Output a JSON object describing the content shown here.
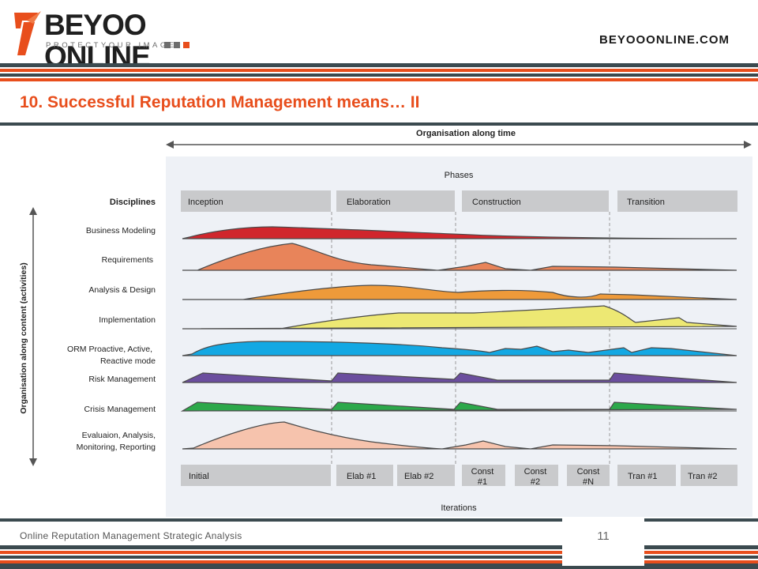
{
  "brand": {
    "name": "BEYOO ONLINE",
    "tagline": "PROTECTYOUR IMAGE",
    "url": "BEYOOONLINE.COM",
    "colors": {
      "orange": "#e84e1c",
      "dark": "#3b4a4f",
      "gray": "#6d6d6d"
    }
  },
  "slide": {
    "title": "10. Successful Reputation Management means… II",
    "footer": "Online Reputation Management Strategic Analysis",
    "page_number": "11"
  },
  "diagram": {
    "top_label": "Organisation along time",
    "side_label": "Organisation along content (activities)",
    "phases_label": "Phases",
    "disciplines_label": "Disciplines",
    "iterations_label": "Iterations",
    "phases": [
      "Inception",
      "Elaboration",
      "Construction",
      "Transition"
    ],
    "iterations": [
      "Initial",
      "Elab #1",
      "Elab #2",
      "Const #1",
      "Const #2",
      "Const #N",
      "Tran #1",
      "Tran #2"
    ],
    "disciplines": [
      {
        "name": "Business Modeling",
        "color": "#d0262c"
      },
      {
        "name": "Requirements",
        "color": "#e8845a"
      },
      {
        "name": "Analysis & Design",
        "color": "#ee9a3a"
      },
      {
        "name": "Implementation",
        "color": "#ede873"
      },
      {
        "name": "ORM Proactive, Active, Reactive mode",
        "color": "#13a8e3"
      },
      {
        "name": "Risk Management",
        "color": "#6b4e9e"
      },
      {
        "name": "Crisis Management",
        "color": "#2ca84a"
      },
      {
        "name": "Evaluaion, Analysis, Monitoring, Reporting",
        "color": "#f6c3ad"
      }
    ]
  }
}
